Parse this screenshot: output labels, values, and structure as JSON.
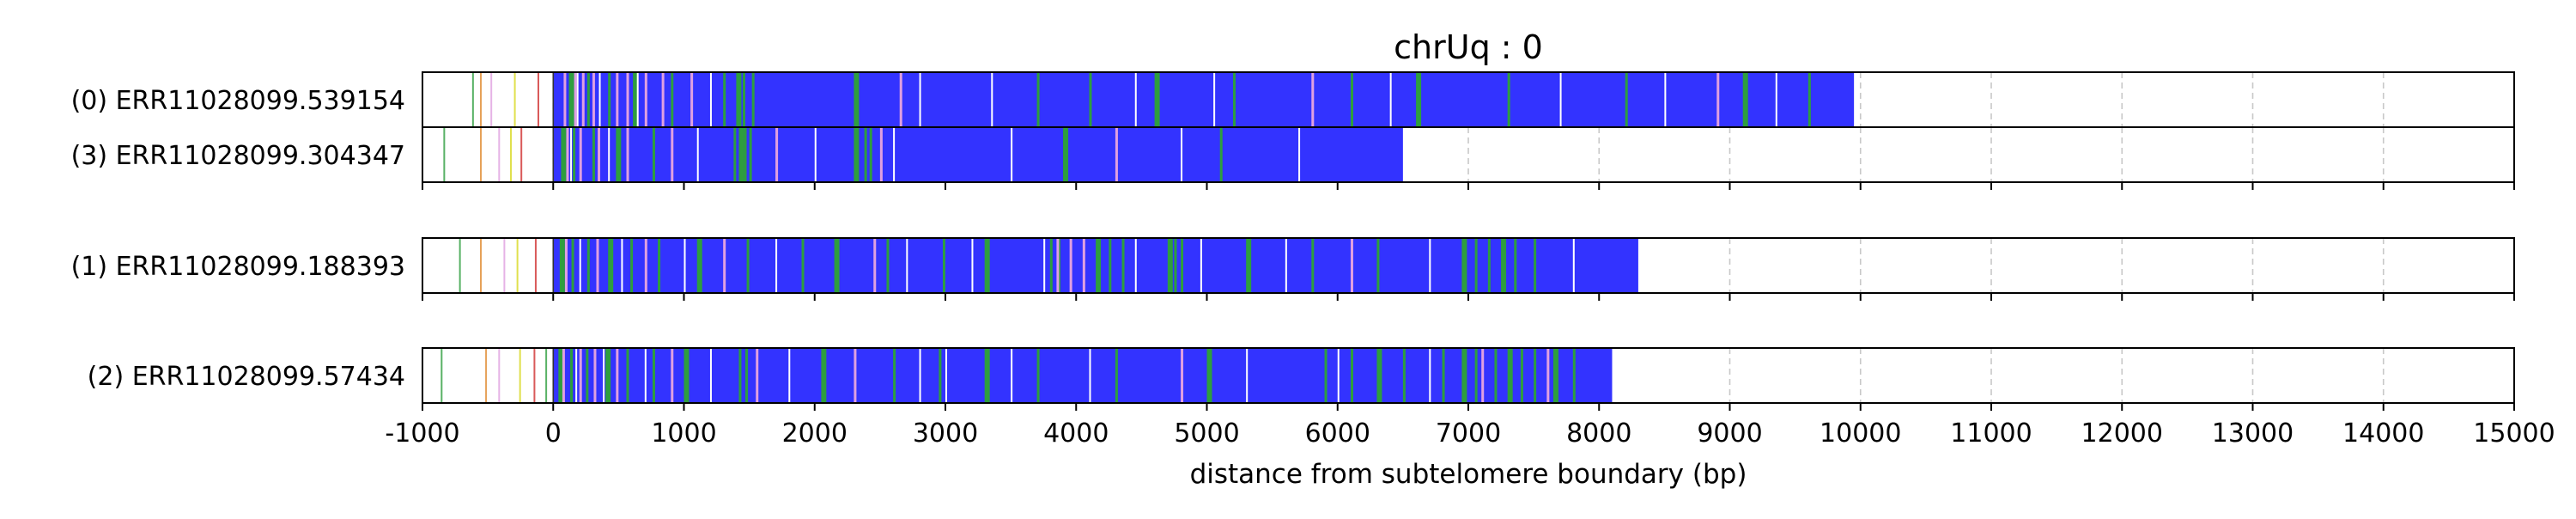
{
  "chart_data": {
    "type": "bar",
    "title": "chrUq : 0",
    "xlabel": "distance from subtelomere boundary (bp)",
    "ylabel": "",
    "xlim": [
      -1000,
      15000
    ],
    "xticks": [
      -1000,
      0,
      1000,
      2000,
      3000,
      4000,
      5000,
      6000,
      7000,
      8000,
      9000,
      10000,
      11000,
      12000,
      13000,
      14000,
      15000
    ],
    "xtick_labels": [
      "-1000",
      "0",
      "1000",
      "2000",
      "3000",
      "4000",
      "5000",
      "6000",
      "7000",
      "8000",
      "9000",
      "10000",
      "11000",
      "12000",
      "13000",
      "14000",
      "15000"
    ],
    "grid": "vertical dashed",
    "colors": {
      "telomere": "#3333ff",
      "variant_green": "#2e9e3e",
      "variant_pink": "#e0a0e0",
      "variant_orange": "#e08a2e",
      "variant_yellow": "#d8d820",
      "variant_red": "#d03030",
      "gap_white": "#ffffff",
      "grid": "#c8c8c8"
    },
    "groups": [
      {
        "reads": [
          {
            "label": "(0) ERR11028099.539154",
            "blue_start": 0,
            "blue_end": 9950,
            "green_marks": [
              120,
              260,
              420,
              610,
              900,
              1300,
              1400,
              1450,
              1520,
              2300,
              3700,
              4100,
              4600,
              5200,
              6100,
              6600,
              7300,
              8200,
              9100,
              9600
            ],
            "pink_marks": [
              80,
              160,
              220,
              300,
              480,
              560,
              700,
              830,
              1050,
              2650,
              5800,
              8900
            ],
            "white_marks": [
              180,
              350,
              640,
              1200,
              2800,
              3350,
              4450,
              5050,
              6400,
              7700,
              8500,
              9350
            ],
            "outer_marks": [
              -620,
              -560,
              -480,
              -300,
              -120
            ]
          },
          {
            "label": "(3) ERR11028099.304347",
            "blue_start": 0,
            "blue_end": 6500,
            "green_marks": [
              60,
              150,
              300,
              480,
              760,
              1380,
              1420,
              1460,
              1500,
              2300,
              2380,
              2420,
              3900,
              5100
            ],
            "pink_marks": [
              100,
              200,
              340,
              560,
              900,
              1700,
              2500,
              4300
            ],
            "white_marks": [
              130,
              420,
              1100,
              2000,
              2600,
              3500,
              4800,
              5700
            ],
            "outer_marks": [
              -840,
              -560,
              -420,
              -330,
              -250
            ]
          }
        ]
      },
      {
        "reads": [
          {
            "label": "(1) ERR11028099.188393",
            "blue_start": 0,
            "blue_end": 8300,
            "green_marks": [
              50,
              140,
              260,
              420,
              590,
              800,
              1100,
              1480,
              1900,
              2150,
              2550,
              2980,
              3300,
              3800,
              3860,
              4150,
              4250,
              4350,
              4700,
              4750,
              4800,
              5300,
              5800,
              6300,
              6950,
              7050,
              7150,
              7250,
              7350,
              7500
            ],
            "pink_marks": [
              90,
              330,
              700,
              1300,
              2450,
              3850,
              3950,
              4050,
              6100
            ],
            "white_marks": [
              200,
              520,
              1000,
              1700,
              2700,
              3200,
              3750,
              4450,
              4950,
              5600,
              6700,
              7800
            ],
            "outer_marks": [
              -720,
              -560,
              -380,
              -280,
              -140
            ]
          }
        ]
      },
      {
        "reads": [
          {
            "label": "(2) ERR11028099.57434",
            "blue_start": 0,
            "blue_end": 8100,
            "green_marks": [
              40,
              130,
              250,
              400,
              560,
              760,
              1000,
              1420,
              1470,
              2050,
              2600,
              2950,
              3300,
              3700,
              4300,
              5000,
              5900,
              6100,
              6300,
              6500,
              6800,
              6950,
              7050,
              7200,
              7300,
              7400,
              7500,
              7650,
              7800
            ],
            "pink_marks": [
              70,
              200,
              310,
              480,
              900,
              1550,
              2300,
              4800,
              7100,
              7600
            ],
            "white_marks": [
              170,
              380,
              700,
              1200,
              1800,
              2800,
              3000,
              3500,
              4100,
              5300,
              6000,
              6700
            ],
            "outer_marks": [
              -860,
              -520,
              -420,
              -260,
              -150,
              -60
            ]
          }
        ]
      }
    ]
  }
}
